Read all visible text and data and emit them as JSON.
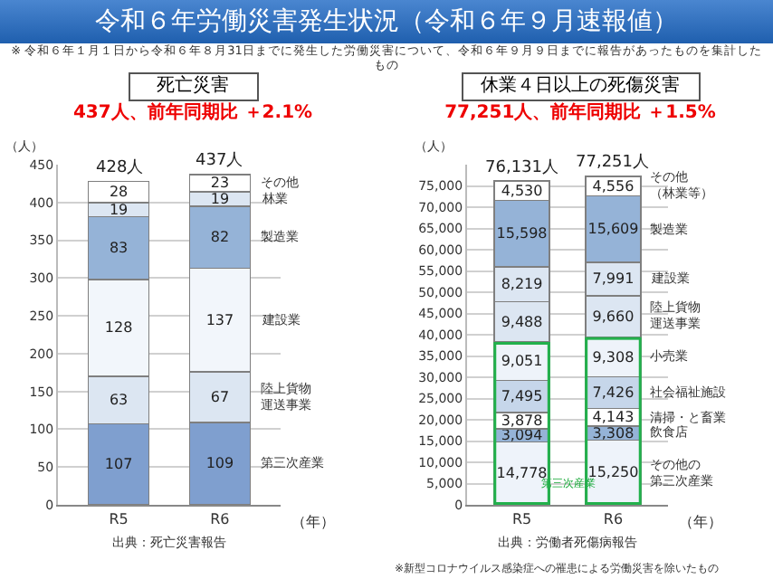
{
  "chart_data": [
    {
      "type": "bar",
      "title": "死亡災害",
      "subtitle": "437人、前年同期比 ＋2.1%",
      "ylabel": "（人）",
      "xlabel": "（年）",
      "annotations": [
        "令和６年労働災害発生状況（令和６年９月速報値）",
        "※ 令和６年１月１日から令和６年８月31日までに発生した労働災害について、令和６年９月９日までに報告があったものを集計したもの",
        "出典：死亡災害報告"
      ],
      "categories": [
        "R5",
        "R6"
      ],
      "stacked": true,
      "data_labels": true,
      "legend": false,
      "grid": "y",
      "ylim": [
        0,
        450
      ],
      "yticks": [
        0,
        50,
        100,
        150,
        200,
        250,
        300,
        350,
        400,
        450
      ],
      "totals": [
        "428人",
        "437人"
      ],
      "series": [
        {
          "name": "第三次産業",
          "color": "#7f9fcf",
          "values": [
            107,
            109
          ]
        },
        {
          "name": "陸上貨物運送事業",
          "color": "#dce6f2",
          "values": [
            63,
            67
          ]
        },
        {
          "name": "建設業",
          "color": "#f2f6fb",
          "values": [
            128,
            137
          ]
        },
        {
          "name": "製造業",
          "color": "#95b3d7",
          "values": [
            83,
            82
          ]
        },
        {
          "name": "林業",
          "color": "#dce6f2",
          "values": [
            19,
            19
          ]
        },
        {
          "name": "その他",
          "color": "#ffffff",
          "values": [
            28,
            23
          ]
        }
      ]
    },
    {
      "type": "bar",
      "title": "休業４日以上の死傷災害",
      "subtitle": "77,251人、前年同期比 ＋1.5%",
      "ylabel": "（人）",
      "xlabel": "（年）",
      "annotations": [
        "出典：労働者死傷病報告",
        "※新型コロナウイルス感染症への罹患による労働災害を除いたもの",
        "第三次産業"
      ],
      "categories": [
        "R5",
        "R6"
      ],
      "stacked": true,
      "legend": false,
      "grid": "y",
      "ylim": [
        0,
        80000
      ],
      "yticks": [
        0,
        {
          "value": 5000,
          "label": "5,000"
        },
        {
          "value": 10000,
          "label": "10,000"
        },
        {
          "value": 15000,
          "label": "15,000"
        },
        {
          "value": 20000,
          "label": "20,000"
        },
        {
          "value": 25000,
          "label": "25,000"
        },
        {
          "value": 30000,
          "label": "30,000"
        },
        {
          "value": 35000,
          "label": "35,000"
        },
        {
          "value": 40000,
          "label": "40,000"
        },
        {
          "value": 45000,
          "label": "45,000"
        },
        {
          "value": 50000,
          "label": "50,000"
        },
        {
          "value": 55000,
          "label": "55,000"
        },
        {
          "value": 60000,
          "label": "60,000"
        },
        {
          "value": 65000,
          "label": "65,000"
        },
        {
          "value": 70000,
          "label": "70,000"
        },
        {
          "value": 75000,
          "label": "75,000"
        }
      ],
      "totals": [
        "76,131人",
        "77,251人"
      ],
      "series": [
        {
          "name": "その他の第三次産業",
          "color": "#eef3fa",
          "values": [
            14778,
            15250
          ],
          "value_labels": [
            "14,778",
            "15,250"
          ]
        },
        {
          "name": "飲食店",
          "color": "#95b3d7",
          "values": [
            3094,
            3308
          ],
          "value_labels": [
            "3,094",
            "3,308"
          ]
        },
        {
          "name": "清掃・と畜業",
          "color": "#ffffff",
          "values": [
            3878,
            4143
          ],
          "value_labels": [
            "3,878",
            "4,143"
          ]
        },
        {
          "name": "社会福祉施設",
          "color": "#c6d6ea",
          "values": [
            7495,
            7426
          ],
          "value_labels": [
            "7,495",
            "7,426"
          ]
        },
        {
          "name": "小売業",
          "color": "#eef3fa",
          "values": [
            9051,
            9308
          ],
          "value_labels": [
            "9,051",
            "9,308"
          ]
        },
        {
          "name": "陸上貨物運送事業",
          "color": "#dce6f2",
          "values": [
            9488,
            9660
          ],
          "value_labels": [
            "9,488",
            "9,660"
          ]
        },
        {
          "name": "建設業",
          "color": "#dce6f2",
          "values": [
            8219,
            7991
          ],
          "value_labels": [
            "8,219",
            "7,991"
          ]
        },
        {
          "name": "製造業",
          "color": "#95b3d7",
          "values": [
            15598,
            15609
          ],
          "value_labels": [
            "15,598",
            "15,609"
          ]
        },
        {
          "name": "その他（林業等）",
          "color": "#ffffff",
          "values": [
            4530,
            4556
          ],
          "value_labels": [
            "4,530",
            "4,556"
          ]
        }
      ]
    }
  ]
}
